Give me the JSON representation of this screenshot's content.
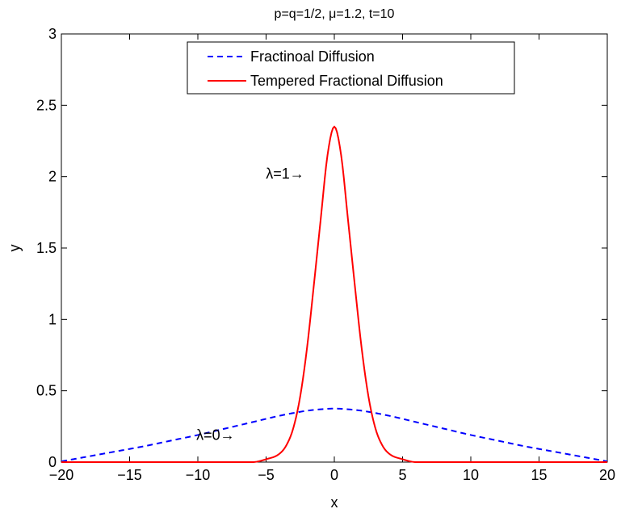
{
  "chart_data": {
    "type": "line",
    "title": "p=q=1/2, μ=1.2, t=10",
    "xlabel": "x",
    "ylabel": "y",
    "xlim": [
      -20,
      20
    ],
    "ylim": [
      0,
      3
    ],
    "xticks": [
      -20,
      -15,
      -10,
      -5,
      0,
      5,
      10,
      15,
      20
    ],
    "xtick_labels": [
      "−20",
      "−15",
      "−10",
      "−5",
      "0",
      "5",
      "10",
      "15",
      "20"
    ],
    "yticks": [
      0,
      0.5,
      1,
      1.5,
      2,
      2.5,
      3
    ],
    "ytick_labels": [
      "0",
      "0.5",
      "1",
      "1.5",
      "2",
      "2.5",
      "3"
    ],
    "grid": false,
    "legend_position": "top-center",
    "series": [
      {
        "name": "Fractinoal Diffusion",
        "style": "dashed",
        "color": "#0000ff",
        "x": [
          -20,
          -18,
          -16,
          -14,
          -12,
          -10,
          -8,
          -6,
          -4,
          -2,
          -1,
          0,
          1,
          2,
          4,
          6,
          8,
          10,
          12,
          14,
          16,
          18,
          20
        ],
        "y": [
          0.005,
          0.04,
          0.075,
          0.11,
          0.15,
          0.19,
          0.235,
          0.28,
          0.325,
          0.36,
          0.37,
          0.375,
          0.37,
          0.36,
          0.325,
          0.28,
          0.235,
          0.19,
          0.15,
          0.11,
          0.075,
          0.04,
          0.005
        ]
      },
      {
        "name": "Tempered Fractional Diffusion",
        "style": "solid",
        "color": "#ff0000",
        "x": [
          -20,
          -10,
          -6,
          -5,
          -4,
          -3.5,
          -3,
          -2.5,
          -2,
          -1.5,
          -1,
          -0.5,
          0,
          0.5,
          1,
          1.5,
          2,
          2.5,
          3,
          3.5,
          4,
          5,
          6,
          10,
          20
        ],
        "y": [
          0.0,
          0.0,
          0.0,
          0.02,
          0.06,
          0.12,
          0.24,
          0.46,
          0.8,
          1.24,
          1.7,
          2.15,
          2.35,
          2.15,
          1.7,
          1.24,
          0.8,
          0.46,
          0.24,
          0.12,
          0.06,
          0.02,
          0.0,
          0.0,
          0.0
        ]
      }
    ],
    "annotations": [
      {
        "text": "λ=1→",
        "x": -2.2,
        "y": 2.02
      },
      {
        "text": "λ=0→",
        "x": -7.3,
        "y": 0.19
      }
    ]
  }
}
